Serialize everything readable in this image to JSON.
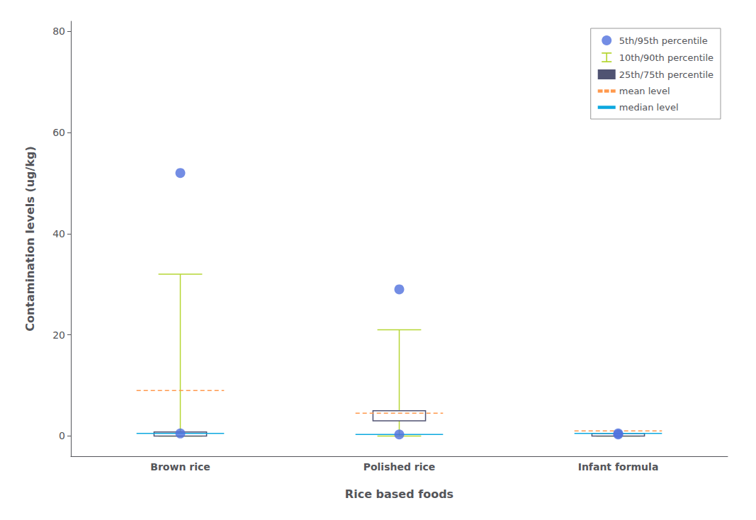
{
  "chart_data": {
    "type": "boxplot",
    "xlabel": "Rice based foods",
    "ylabel": "Contamination levels (ug/kg)",
    "categories": [
      "Brown rice",
      "Polished rice",
      "Infant formula"
    ],
    "ylim": [
      -4,
      82
    ],
    "yticks": [
      0,
      20,
      40,
      60,
      80
    ],
    "grid": false,
    "legend": "upper right",
    "series": [
      {
        "name": "5th/95th percentile",
        "type": "scatter",
        "marker": "circle",
        "low": [
          0.5,
          0.3,
          0.3
        ],
        "high": [
          52,
          29,
          0.5
        ]
      },
      {
        "name": "10th/90th percentile",
        "type": "errorbar",
        "low": [
          0,
          0,
          0
        ],
        "high": [
          32,
          21,
          0.5
        ]
      },
      {
        "name": "25th/75th percentile",
        "type": "box",
        "low": [
          0,
          3,
          0
        ],
        "high": [
          0.8,
          5,
          0.5
        ]
      },
      {
        "name": "mean level",
        "type": "line",
        "line_style": "dashed",
        "values": [
          9,
          4.5,
          1.0
        ]
      },
      {
        "name": "median level",
        "type": "line",
        "line_style": "solid",
        "values": [
          0.5,
          0.3,
          0.5
        ]
      }
    ]
  }
}
